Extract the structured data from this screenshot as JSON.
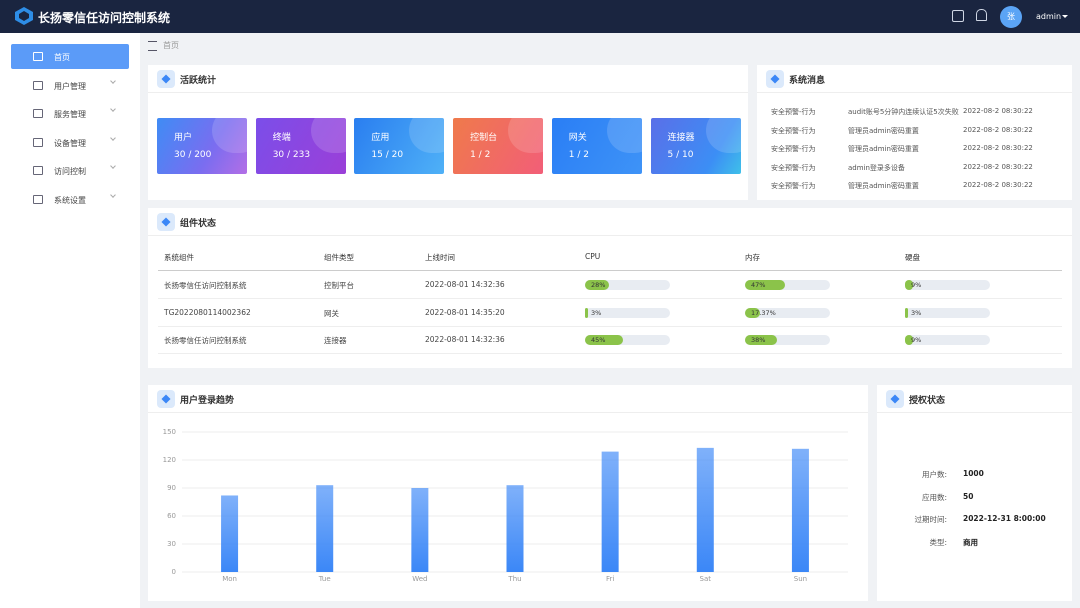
{
  "header": {
    "title": "长扬零信任访问控制系统",
    "avatar": "张",
    "user": "admin"
  },
  "sidebar": {
    "items": [
      "首页",
      "用户管理",
      "服务管理",
      "设备管理",
      "访问控制",
      "系统设置"
    ]
  },
  "breadcrumb": "首页",
  "activity": {
    "title": "活跃统计",
    "cards": [
      {
        "label": "用户",
        "value": "30 / 200"
      },
      {
        "label": "终端",
        "value": "30 / 233"
      },
      {
        "label": "应用",
        "value": "15 / 20"
      },
      {
        "label": "控制台",
        "value": "1 / 2"
      },
      {
        "label": "网关",
        "value": "1 / 2"
      },
      {
        "label": "连接器",
        "value": "5 / 10"
      }
    ]
  },
  "messages": {
    "title": "系统消息",
    "rows": [
      [
        "安全预警-行为",
        "audit账号5分钟内连续认证5次失败",
        "2022-08-2 08:30:22"
      ],
      [
        "安全预警-行为",
        "管理员admin密码重置",
        "2022-08-2 08:30:22"
      ],
      [
        "安全预警-行为",
        "管理员admin密码重置",
        "2022-08-2 08:30:22"
      ],
      [
        "安全预警-行为",
        "admin登录多设备",
        "2022-08-2 08:30:22"
      ],
      [
        "安全预警-行为",
        "管理员admin密码重置",
        "2022-08-2 08:30:22"
      ]
    ]
  },
  "components": {
    "title": "组件状态",
    "columns": [
      "系统组件",
      "组件类型",
      "上线时间",
      "CPU",
      "内存",
      "硬盘"
    ],
    "usage_range": [
      0,
      100
    ],
    "rows": [
      {
        "cells": [
          "长扬零信任访问控制系统",
          "控制平台",
          "2022-08-01 14:32:36"
        ],
        "usage": [
          28,
          47,
          9
        ],
        "usage_labels": [
          "28%",
          "47%",
          "9%"
        ]
      },
      {
        "cells": [
          "TG2022080114002362",
          "网关",
          "2022-08-01 14:35:20"
        ],
        "usage": [
          3,
          17.37,
          3
        ],
        "usage_labels": [
          "3%",
          "17.37%",
          "3%"
        ]
      },
      {
        "cells": [
          "长扬零信任访问控制系统",
          "连接器",
          "2022-08-01 14:32:36"
        ],
        "usage": [
          45,
          38,
          9
        ],
        "usage_labels": [
          "45%",
          "38%",
          "9%"
        ]
      }
    ]
  },
  "chart_data": {
    "type": "bar",
    "title": "用户登录趋势",
    "categories": [
      "Mon",
      "Tue",
      "Wed",
      "Thu",
      "Fri",
      "Sat",
      "Sun"
    ],
    "values": [
      82,
      93,
      90,
      93,
      129,
      133,
      132
    ],
    "color": "#3b87f7",
    "ylim": [
      0,
      150
    ],
    "yticks": [
      0,
      30,
      60,
      90,
      120,
      150
    ],
    "grid": true
  },
  "license": {
    "title": "授权状态",
    "rows": [
      [
        "用户数:",
        "1000"
      ],
      [
        "应用数:",
        "50"
      ],
      [
        "过期时间:",
        "2022-12-31 8:00:00"
      ],
      [
        "类型:",
        "商用"
      ]
    ]
  }
}
